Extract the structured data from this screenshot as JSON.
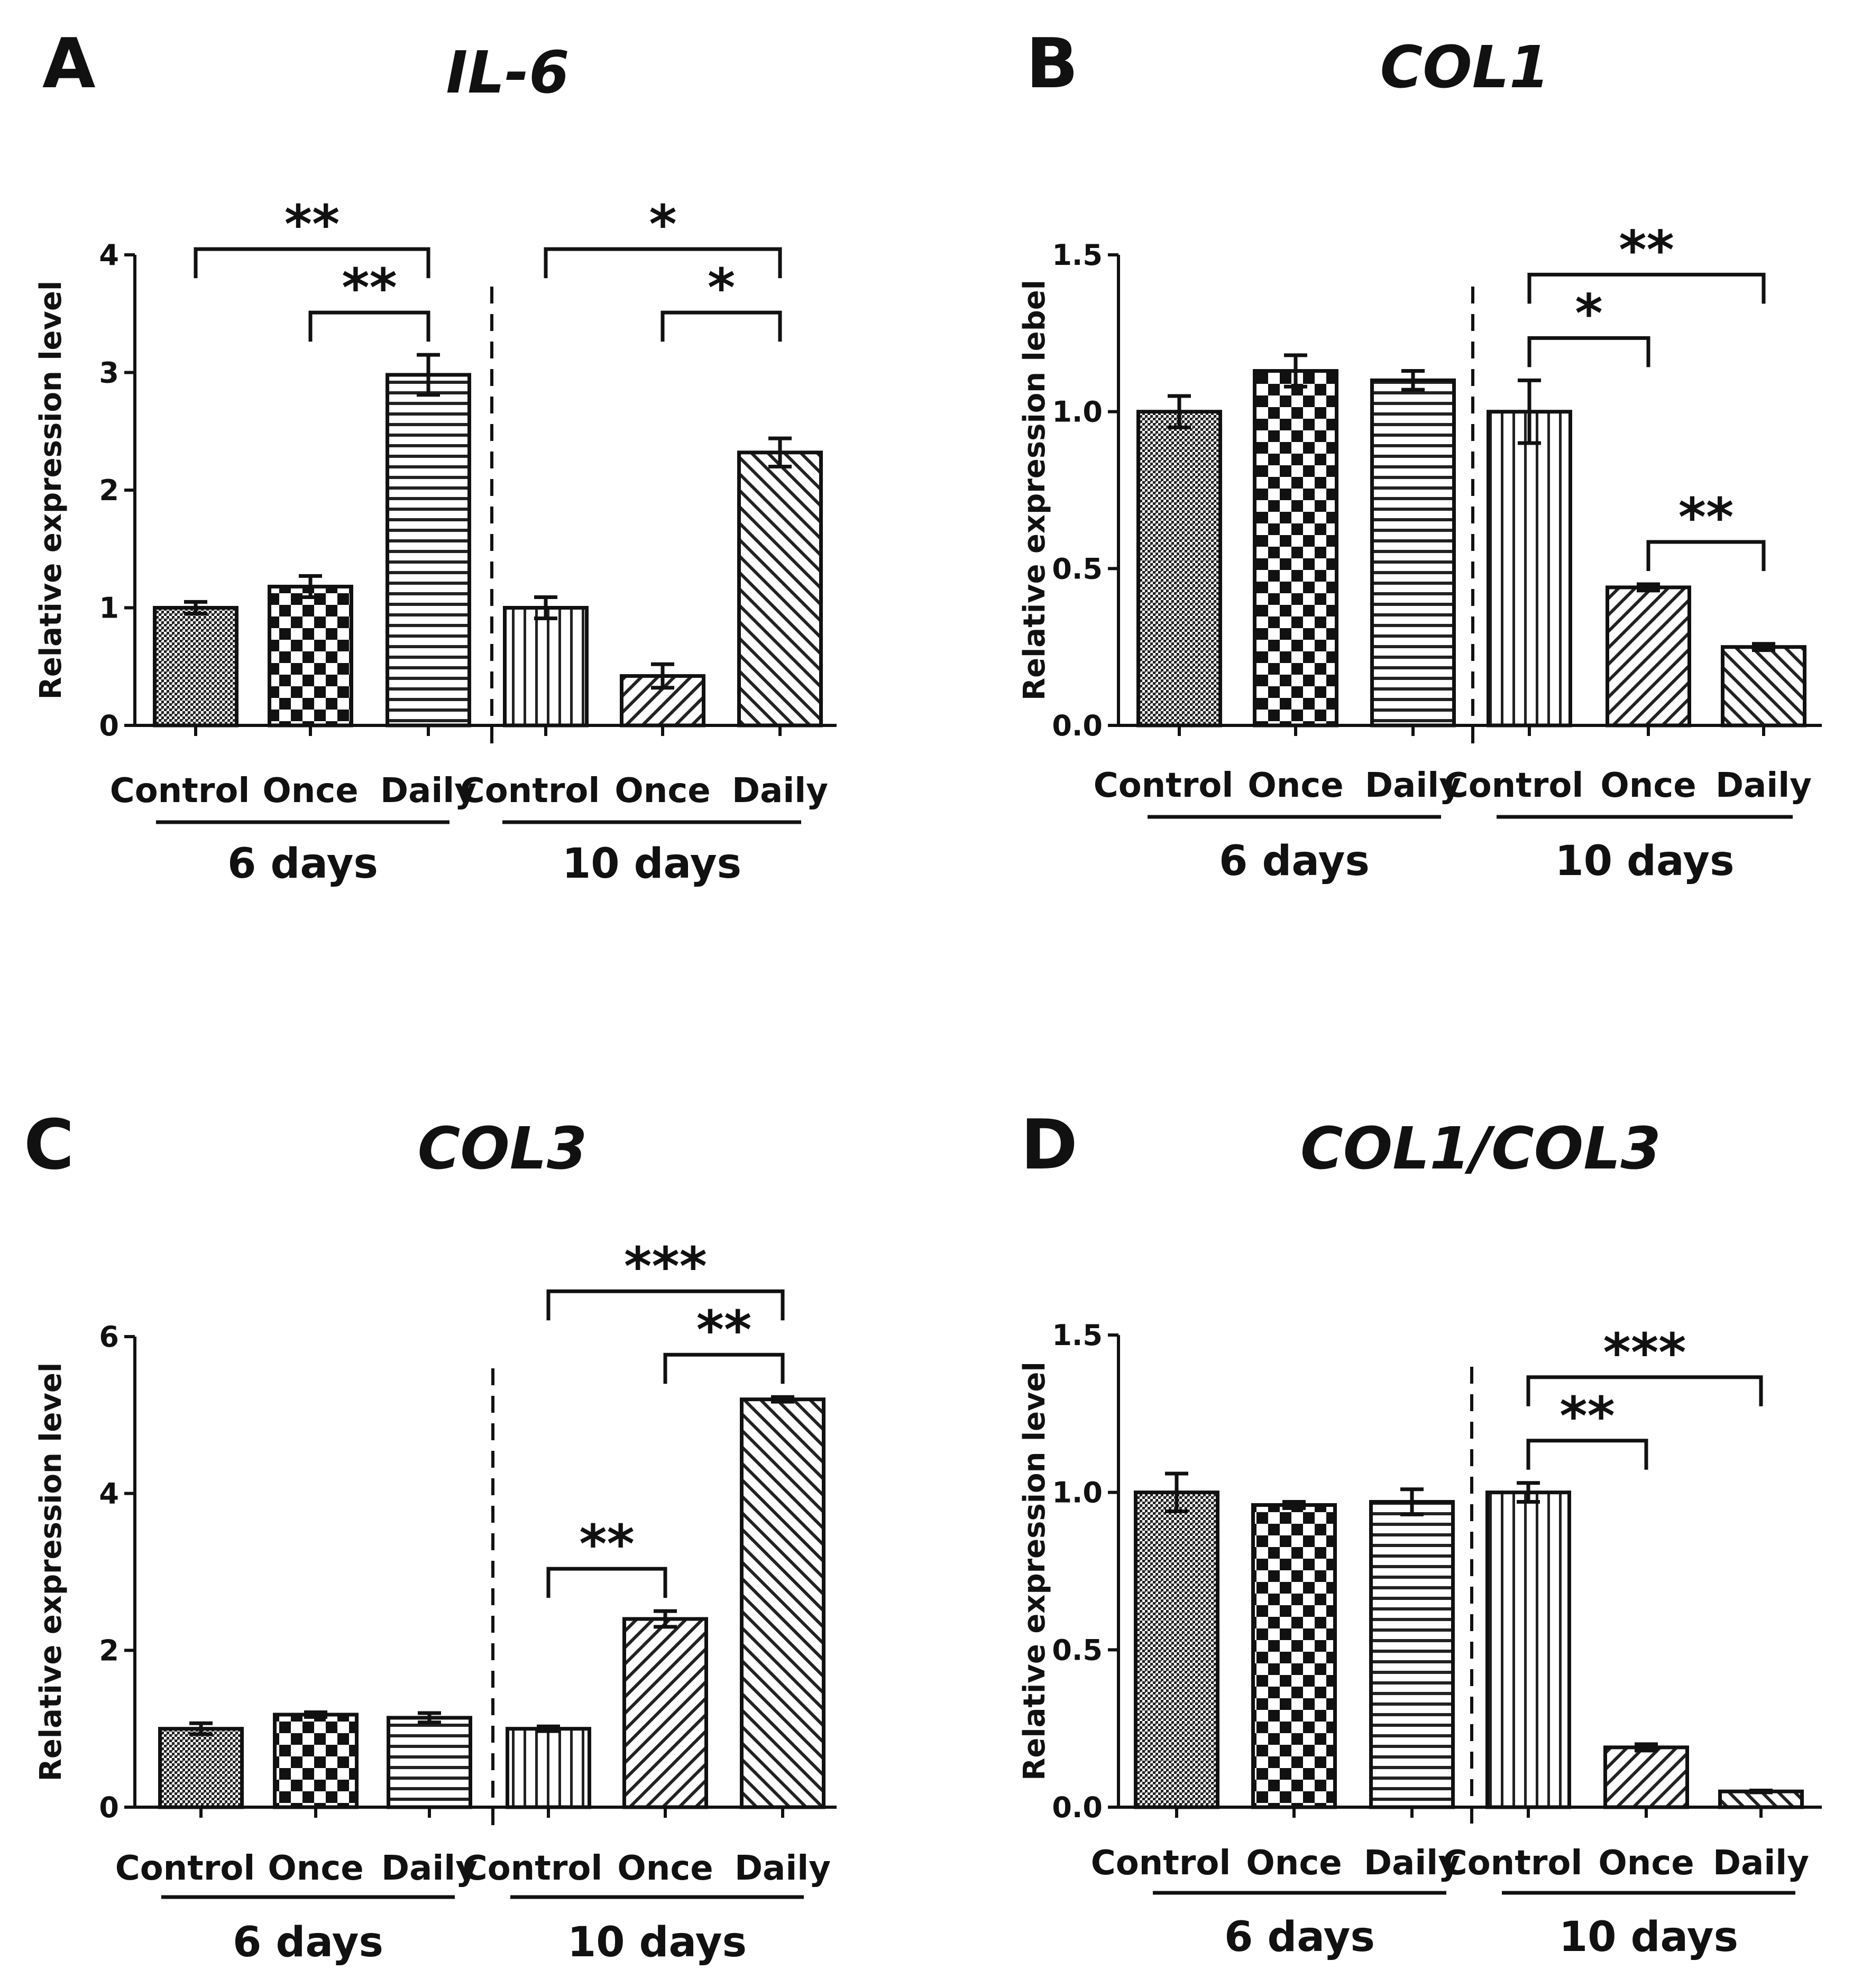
{
  "chart_data": [
    {
      "panel": "A",
      "type": "bar",
      "title": "IL-6",
      "ylabel": "Relative expression level",
      "ylim": [
        0,
        4
      ],
      "yticks": [
        "0",
        "1",
        "2",
        "3",
        "4"
      ],
      "groups": [
        {
          "label": "6 days",
          "categories": [
            "Control",
            "Once",
            "Daily"
          ],
          "values": [
            1.0,
            1.18,
            2.98
          ],
          "errors": [
            0.05,
            0.09,
            0.17
          ],
          "patterns": [
            "dots",
            "checker",
            "hlines"
          ]
        },
        {
          "label": "10 days",
          "categories": [
            "Control",
            "Once",
            "Daily"
          ],
          "values": [
            1.0,
            0.42,
            2.32
          ],
          "errors": [
            0.09,
            0.1,
            0.12
          ],
          "patterns": [
            "vlines",
            "diag",
            "diagback"
          ]
        }
      ],
      "significance": [
        {
          "label": "**",
          "from": 0,
          "to": 2,
          "level": 0
        },
        {
          "label": "**",
          "from": 1,
          "to": 2,
          "level": 1
        },
        {
          "label": "*",
          "from": 3,
          "to": 5,
          "level": 0
        },
        {
          "label": "*",
          "from": 4,
          "to": 5,
          "level": 1
        }
      ]
    },
    {
      "panel": "B",
      "type": "bar",
      "title": "COL1",
      "ylabel": "Relative expression lebel",
      "ylim": [
        0,
        1.5
      ],
      "yticks": [
        "0.0",
        "0.5",
        "1.0",
        "1.5"
      ],
      "groups": [
        {
          "label": "6 days",
          "categories": [
            "Control",
            "Once",
            "Daily"
          ],
          "values": [
            1.0,
            1.13,
            1.1
          ],
          "errors": [
            0.05,
            0.05,
            0.03
          ],
          "patterns": [
            "dots",
            "checker",
            "hlines"
          ]
        },
        {
          "label": "10 days",
          "categories": [
            "Control",
            "Once",
            "Daily"
          ],
          "values": [
            1.0,
            0.44,
            0.25
          ],
          "errors": [
            0.1,
            0.01,
            0.01
          ],
          "patterns": [
            "vlines",
            "diag",
            "diagback"
          ]
        }
      ],
      "significance": [
        {
          "label": "**",
          "from": 3,
          "to": 5,
          "level": 0
        },
        {
          "label": "*",
          "from": 3,
          "to": 4,
          "level": 1
        },
        {
          "label": "**",
          "from": 4,
          "to": 5,
          "level": 2
        }
      ]
    },
    {
      "panel": "C",
      "type": "bar",
      "title": "COL3",
      "ylabel": "Relative expression level",
      "ylim": [
        0,
        6
      ],
      "yticks": [
        "0",
        "2",
        "4",
        "6"
      ],
      "groups": [
        {
          "label": "6 days",
          "categories": [
            "Control",
            "Once",
            "Daily"
          ],
          "values": [
            1.0,
            1.18,
            1.14
          ],
          "errors": [
            0.07,
            0.03,
            0.06
          ],
          "patterns": [
            "dots",
            "checker",
            "hlines"
          ]
        },
        {
          "label": "10 days",
          "categories": [
            "Control",
            "Once",
            "Daily"
          ],
          "values": [
            1.0,
            2.4,
            5.2
          ],
          "errors": [
            0.03,
            0.1,
            0.03
          ],
          "patterns": [
            "vlines",
            "diag",
            "diagback"
          ]
        }
      ],
      "significance": [
        {
          "label": "***",
          "from": 3,
          "to": 5,
          "level": 0
        },
        {
          "label": "**",
          "from": 4,
          "to": 5,
          "level": 1
        },
        {
          "label": "**",
          "from": 3,
          "to": 4,
          "level": 2
        }
      ]
    },
    {
      "panel": "D",
      "type": "bar",
      "title": "COL1/COL3",
      "ylabel": "Relative expression level",
      "ylim": [
        0,
        1.5
      ],
      "yticks": [
        "0.0",
        "0.5",
        "1.0",
        "1.5"
      ],
      "groups": [
        {
          "label": "6 days",
          "categories": [
            "Control",
            "Once",
            "Daily"
          ],
          "values": [
            1.0,
            0.96,
            0.97
          ],
          "errors": [
            0.06,
            0.01,
            0.04
          ],
          "patterns": [
            "dots",
            "checker",
            "hlines"
          ]
        },
        {
          "label": "10 days",
          "categories": [
            "Control",
            "Once",
            "Daily"
          ],
          "values": [
            1.0,
            0.19,
            0.05
          ],
          "errors": [
            0.03,
            0.01,
            0.003
          ],
          "patterns": [
            "vlines",
            "diag",
            "diagback"
          ]
        }
      ],
      "significance": [
        {
          "label": "***",
          "from": 3,
          "to": 5,
          "level": 0
        },
        {
          "label": "**",
          "from": 3,
          "to": 4,
          "level": 1
        }
      ]
    }
  ]
}
